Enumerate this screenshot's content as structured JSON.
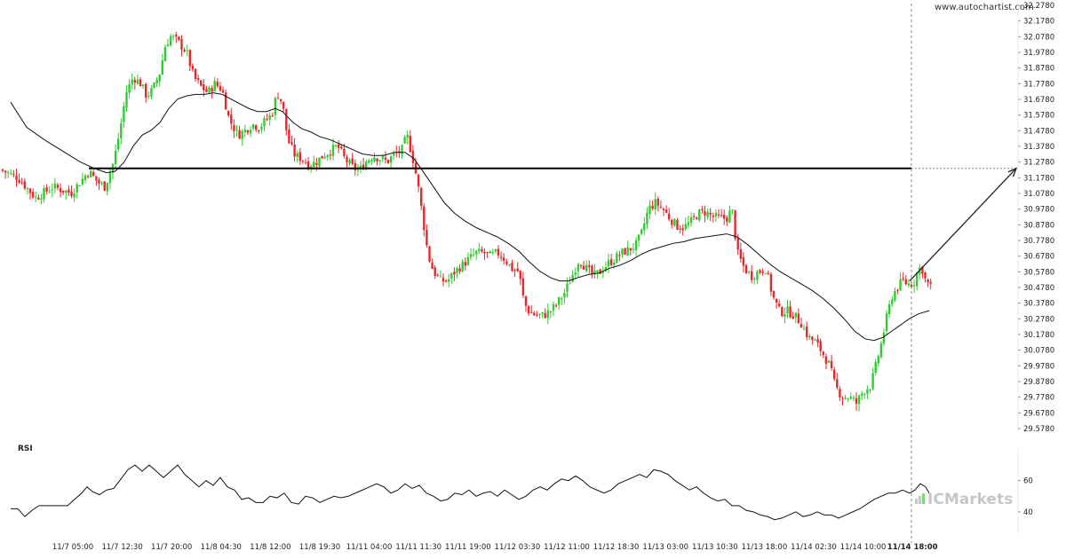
{
  "watermark": "www.autochartist.com",
  "brand": {
    "prefix": "IC",
    "name": "Markets"
  },
  "chart_data": [
    {
      "type": "candlestick",
      "y_ticks": [
        "32.2780",
        "32.1780",
        "32.0780",
        "31.9780",
        "31.8780",
        "31.7780",
        "31.6780",
        "31.5780",
        "31.4780",
        "31.3780",
        "31.2780",
        "31.1780",
        "31.0780",
        "30.9780",
        "30.8780",
        "30.7780",
        "30.6780",
        "30.5780",
        "30.4780",
        "30.3780",
        "30.2780",
        "30.1780",
        "30.0780",
        "29.9780",
        "29.8780",
        "29.7780",
        "29.6780",
        "29.5780"
      ],
      "ylim": [
        29.578,
        32.278
      ],
      "x_ticks": [
        "11/7 05:00",
        "11/7 12:30",
        "11/7 20:00",
        "11/8 04:30",
        "11/8 12:00",
        "11/8 19:30",
        "11/11 04:00",
        "11/11 11:30",
        "11/11 19:00",
        "11/12 03:30",
        "11/12 11:00",
        "11/12 18:30",
        "11/13 03:00",
        "11/13 10:30",
        "11/13 18:00",
        "11/14 02:30",
        "11/14 10:00",
        "11/14 18:00"
      ],
      "highlight_x_tick": "11/14 18:00",
      "support_level": 31.238,
      "colors": {
        "up": "#2ecc2e",
        "down": "#e8262b",
        "line": "#000000"
      },
      "close_path": [
        [
          0,
          31.23
        ],
        [
          20,
          31.18
        ],
        [
          40,
          31.05
        ],
        [
          60,
          31.12
        ],
        [
          80,
          31.08
        ],
        [
          100,
          31.22
        ],
        [
          110,
          31.15
        ],
        [
          118,
          31.12
        ],
        [
          128,
          31.28
        ],
        [
          135,
          31.48
        ],
        [
          142,
          31.72
        ],
        [
          150,
          31.82
        ],
        [
          158,
          31.78
        ],
        [
          165,
          31.7
        ],
        [
          172,
          31.74
        ],
        [
          180,
          31.85
        ],
        [
          186,
          32.02
        ],
        [
          192,
          32.08
        ],
        [
          200,
          32.05
        ],
        [
          210,
          31.98
        ],
        [
          218,
          31.82
        ],
        [
          226,
          31.76
        ],
        [
          234,
          31.72
        ],
        [
          242,
          31.78
        ],
        [
          250,
          31.74
        ],
        [
          258,
          31.55
        ],
        [
          268,
          31.45
        ],
        [
          276,
          31.48
        ],
        [
          284,
          31.52
        ],
        [
          292,
          31.5
        ],
        [
          300,
          31.55
        ],
        [
          306,
          31.58
        ],
        [
          312,
          31.72
        ],
        [
          318,
          31.65
        ],
        [
          324,
          31.42
        ],
        [
          332,
          31.32
        ],
        [
          340,
          31.3
        ],
        [
          348,
          31.26
        ],
        [
          356,
          31.28
        ],
        [
          364,
          31.32
        ],
        [
          372,
          31.35
        ],
        [
          380,
          31.38
        ],
        [
          388,
          31.3
        ],
        [
          396,
          31.25
        ],
        [
          404,
          31.22
        ],
        [
          412,
          31.28
        ],
        [
          420,
          31.32
        ],
        [
          428,
          31.3
        ],
        [
          436,
          31.28
        ],
        [
          444,
          31.33
        ],
        [
          452,
          31.35
        ],
        [
          458,
          31.45
        ],
        [
          464,
          31.32
        ],
        [
          470,
          31.15
        ],
        [
          476,
          30.92
        ],
        [
          482,
          30.68
        ],
        [
          488,
          30.58
        ],
        [
          496,
          30.52
        ],
        [
          504,
          30.52
        ],
        [
          512,
          30.58
        ],
        [
          520,
          30.62
        ],
        [
          528,
          30.66
        ],
        [
          536,
          30.7
        ],
        [
          544,
          30.7
        ],
        [
          552,
          30.68
        ],
        [
          560,
          30.7
        ],
        [
          568,
          30.66
        ],
        [
          576,
          30.6
        ],
        [
          584,
          30.58
        ],
        [
          590,
          30.38
        ],
        [
          596,
          30.32
        ],
        [
          604,
          30.3
        ],
        [
          612,
          30.3
        ],
        [
          620,
          30.33
        ],
        [
          628,
          30.38
        ],
        [
          636,
          30.45
        ],
        [
          644,
          30.55
        ],
        [
          652,
          30.66
        ],
        [
          660,
          30.6
        ],
        [
          668,
          30.55
        ],
        [
          676,
          30.58
        ],
        [
          684,
          30.63
        ],
        [
          692,
          30.66
        ],
        [
          700,
          30.7
        ],
        [
          708,
          30.72
        ],
        [
          716,
          30.75
        ],
        [
          722,
          30.82
        ],
        [
          730,
          30.98
        ],
        [
          738,
          31.02
        ],
        [
          746,
          30.98
        ],
        [
          754,
          30.92
        ],
        [
          762,
          30.87
        ],
        [
          770,
          30.86
        ],
        [
          778,
          30.9
        ],
        [
          786,
          30.95
        ],
        [
          794,
          30.96
        ],
        [
          802,
          30.93
        ],
        [
          810,
          30.92
        ],
        [
          818,
          30.92
        ],
        [
          824,
          30.98
        ],
        [
          830,
          30.7
        ],
        [
          838,
          30.6
        ],
        [
          846,
          30.55
        ],
        [
          854,
          30.58
        ],
        [
          862,
          30.6
        ],
        [
          870,
          30.42
        ],
        [
          878,
          30.32
        ],
        [
          886,
          30.33
        ],
        [
          894,
          30.3
        ],
        [
          902,
          30.25
        ],
        [
          910,
          30.16
        ],
        [
          918,
          30.13
        ],
        [
          926,
          30.06
        ],
        [
          934,
          29.98
        ],
        [
          940,
          29.85
        ],
        [
          948,
          29.78
        ],
        [
          956,
          29.78
        ],
        [
          964,
          29.74
        ],
        [
          972,
          29.82
        ],
        [
          980,
          29.85
        ],
        [
          986,
          29.98
        ],
        [
          992,
          30.12
        ],
        [
          998,
          30.28
        ],
        [
          1004,
          30.42
        ],
        [
          1010,
          30.48
        ],
        [
          1016,
          30.52
        ],
        [
          1022,
          30.5
        ],
        [
          1028,
          30.5
        ],
        [
          1034,
          30.6
        ],
        [
          1038,
          30.6
        ],
        [
          1042,
          30.52
        ],
        [
          1048,
          30.48
        ]
      ],
      "ma_path": [
        [
          12,
          31.66
        ],
        [
          30,
          31.5
        ],
        [
          50,
          31.42
        ],
        [
          70,
          31.35
        ],
        [
          90,
          31.28
        ],
        [
          105,
          31.24
        ],
        [
          120,
          31.21
        ],
        [
          130,
          31.22
        ],
        [
          140,
          31.28
        ],
        [
          150,
          31.38
        ],
        [
          160,
          31.45
        ],
        [
          170,
          31.48
        ],
        [
          180,
          31.53
        ],
        [
          190,
          31.62
        ],
        [
          200,
          31.68
        ],
        [
          210,
          31.7
        ],
        [
          220,
          31.71
        ],
        [
          230,
          31.71
        ],
        [
          240,
          31.72
        ],
        [
          250,
          31.71
        ],
        [
          260,
          31.68
        ],
        [
          270,
          31.65
        ],
        [
          280,
          31.62
        ],
        [
          290,
          31.6
        ],
        [
          300,
          31.6
        ],
        [
          310,
          31.62
        ],
        [
          318,
          31.6
        ],
        [
          330,
          31.53
        ],
        [
          340,
          31.49
        ],
        [
          350,
          31.47
        ],
        [
          360,
          31.44
        ],
        [
          372,
          31.42
        ],
        [
          384,
          31.39
        ],
        [
          396,
          31.36
        ],
        [
          408,
          31.33
        ],
        [
          420,
          31.32
        ],
        [
          432,
          31.32
        ],
        [
          444,
          31.34
        ],
        [
          456,
          31.34
        ],
        [
          466,
          31.3
        ],
        [
          476,
          31.22
        ],
        [
          488,
          31.12
        ],
        [
          500,
          31.02
        ],
        [
          512,
          30.95
        ],
        [
          524,
          30.9
        ],
        [
          536,
          30.86
        ],
        [
          548,
          30.83
        ],
        [
          560,
          30.8
        ],
        [
          572,
          30.76
        ],
        [
          584,
          30.71
        ],
        [
          596,
          30.64
        ],
        [
          608,
          30.58
        ],
        [
          620,
          30.54
        ],
        [
          630,
          30.52
        ],
        [
          640,
          30.52
        ],
        [
          650,
          30.54
        ],
        [
          662,
          30.56
        ],
        [
          674,
          30.57
        ],
        [
          686,
          30.6
        ],
        [
          698,
          30.62
        ],
        [
          710,
          30.65
        ],
        [
          722,
          30.69
        ],
        [
          734,
          30.72
        ],
        [
          746,
          30.74
        ],
        [
          758,
          30.76
        ],
        [
          770,
          30.77
        ],
        [
          782,
          30.79
        ],
        [
          794,
          30.8
        ],
        [
          806,
          30.81
        ],
        [
          818,
          30.82
        ],
        [
          830,
          30.8
        ],
        [
          842,
          30.75
        ],
        [
          854,
          30.69
        ],
        [
          866,
          30.63
        ],
        [
          878,
          30.58
        ],
        [
          890,
          30.54
        ],
        [
          902,
          30.5
        ],
        [
          914,
          30.46
        ],
        [
          926,
          30.41
        ],
        [
          938,
          30.35
        ],
        [
          950,
          30.28
        ],
        [
          962,
          30.2
        ],
        [
          974,
          30.15
        ],
        [
          984,
          30.14
        ],
        [
          994,
          30.16
        ],
        [
          1004,
          30.2
        ],
        [
          1014,
          30.24
        ],
        [
          1024,
          30.28
        ],
        [
          1034,
          30.31
        ],
        [
          1046,
          30.33
        ]
      ],
      "forecast": {
        "from": [
          1024,
          30.52
        ],
        "to": [
          1144,
          31.238
        ]
      }
    },
    {
      "type": "line",
      "title": "RSI",
      "y_ticks": [
        "60",
        "40"
      ],
      "ylim": [
        28,
        78
      ],
      "values_path": [
        [
          12,
          42
        ],
        [
          20,
          42
        ],
        [
          28,
          37
        ],
        [
          36,
          41
        ],
        [
          44,
          44
        ],
        [
          52,
          44
        ],
        [
          60,
          44
        ],
        [
          68,
          44
        ],
        [
          76,
          44
        ],
        [
          84,
          48
        ],
        [
          92,
          52
        ],
        [
          98,
          56
        ],
        [
          104,
          53
        ],
        [
          112,
          51
        ],
        [
          120,
          54
        ],
        [
          128,
          55
        ],
        [
          136,
          61
        ],
        [
          144,
          67
        ],
        [
          152,
          70
        ],
        [
          160,
          66
        ],
        [
          168,
          70
        ],
        [
          176,
          66
        ],
        [
          184,
          62
        ],
        [
          192,
          66
        ],
        [
          200,
          70
        ],
        [
          208,
          64
        ],
        [
          216,
          60
        ],
        [
          224,
          56
        ],
        [
          232,
          60
        ],
        [
          240,
          57
        ],
        [
          248,
          62
        ],
        [
          256,
          56
        ],
        [
          264,
          54
        ],
        [
          272,
          48
        ],
        [
          280,
          49
        ],
        [
          288,
          46
        ],
        [
          296,
          46
        ],
        [
          304,
          50
        ],
        [
          312,
          49
        ],
        [
          320,
          52
        ],
        [
          328,
          46
        ],
        [
          336,
          45
        ],
        [
          344,
          50
        ],
        [
          352,
          49
        ],
        [
          360,
          46
        ],
        [
          368,
          48
        ],
        [
          376,
          50
        ],
        [
          384,
          49
        ],
        [
          392,
          50
        ],
        [
          400,
          52
        ],
        [
          408,
          54
        ],
        [
          416,
          56
        ],
        [
          424,
          58
        ],
        [
          432,
          56
        ],
        [
          440,
          52
        ],
        [
          448,
          54
        ],
        [
          456,
          58
        ],
        [
          464,
          55
        ],
        [
          472,
          57
        ],
        [
          480,
          52
        ],
        [
          488,
          50
        ],
        [
          496,
          47
        ],
        [
          504,
          48
        ],
        [
          512,
          52
        ],
        [
          520,
          51
        ],
        [
          528,
          54
        ],
        [
          536,
          50
        ],
        [
          544,
          52
        ],
        [
          552,
          53
        ],
        [
          560,
          50
        ],
        [
          568,
          54
        ],
        [
          576,
          51
        ],
        [
          584,
          48
        ],
        [
          592,
          50
        ],
        [
          600,
          54
        ],
        [
          608,
          56
        ],
        [
          616,
          54
        ],
        [
          624,
          58
        ],
        [
          632,
          61
        ],
        [
          640,
          60
        ],
        [
          648,
          63
        ],
        [
          656,
          60
        ],
        [
          664,
          56
        ],
        [
          672,
          54
        ],
        [
          680,
          52
        ],
        [
          688,
          54
        ],
        [
          696,
          58
        ],
        [
          704,
          60
        ],
        [
          712,
          62
        ],
        [
          720,
          64
        ],
        [
          728,
          62
        ],
        [
          736,
          67
        ],
        [
          744,
          66
        ],
        [
          752,
          64
        ],
        [
          760,
          60
        ],
        [
          768,
          57
        ],
        [
          776,
          54
        ],
        [
          784,
          56
        ],
        [
          792,
          52
        ],
        [
          800,
          49
        ],
        [
          808,
          47
        ],
        [
          816,
          48
        ],
        [
          824,
          44
        ],
        [
          832,
          44
        ],
        [
          840,
          41
        ],
        [
          848,
          40
        ],
        [
          856,
          38
        ],
        [
          864,
          37
        ],
        [
          872,
          35
        ],
        [
          880,
          36
        ],
        [
          888,
          38
        ],
        [
          896,
          40
        ],
        [
          904,
          37
        ],
        [
          912,
          38
        ],
        [
          920,
          40
        ],
        [
          928,
          38
        ],
        [
          936,
          38
        ],
        [
          944,
          36
        ],
        [
          952,
          38
        ],
        [
          960,
          40
        ],
        [
          968,
          42
        ],
        [
          976,
          45
        ],
        [
          984,
          48
        ],
        [
          992,
          50
        ],
        [
          1000,
          52
        ],
        [
          1008,
          52
        ],
        [
          1016,
          54
        ],
        [
          1024,
          52
        ],
        [
          1030,
          54
        ],
        [
          1036,
          58
        ],
        [
          1042,
          56
        ],
        [
          1048,
          50
        ]
      ]
    }
  ]
}
